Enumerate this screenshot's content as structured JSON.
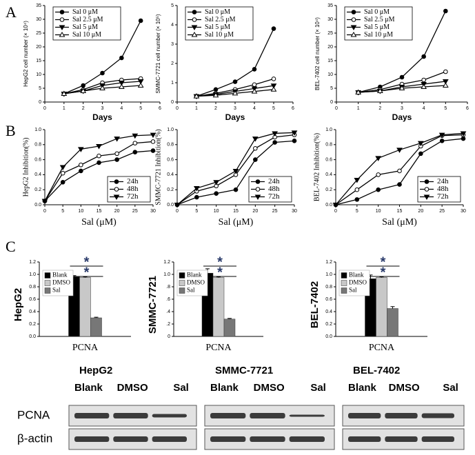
{
  "panel_labels": [
    "A",
    "B",
    "C"
  ],
  "chart_data": [
    {
      "type": "line",
      "x_label": "Days",
      "y_label": "HepG2 cell number (× 10⁴)",
      "x": [
        1,
        2,
        3,
        4,
        5
      ],
      "xlim": [
        0,
        6
      ],
      "xticks": [
        0,
        1,
        2,
        3,
        4,
        5,
        6
      ],
      "ylim": [
        0,
        35
      ],
      "yticks": [
        0,
        5,
        10,
        15,
        20,
        25,
        30,
        35
      ],
      "legend": "upper left",
      "series": [
        {
          "name": "Sal 0 μM",
          "color": "#000000",
          "marker": "circle-filled",
          "values": [
            3,
            6,
            10.5,
            16,
            29.5
          ]
        },
        {
          "name": "Sal 2.5 μM",
          "color": "#000000",
          "marker": "circle-open",
          "values": [
            3,
            4.5,
            7,
            8,
            8.5
          ]
        },
        {
          "name": "Sal 5 μM",
          "color": "#000000",
          "marker": "tri-down",
          "values": [
            3,
            4,
            6,
            7,
            7.5
          ]
        },
        {
          "name": "Sal 10 μM",
          "color": "#000000",
          "marker": "tri-up-open",
          "values": [
            3,
            4,
            5,
            5.5,
            6
          ]
        }
      ]
    },
    {
      "type": "line",
      "x_label": "Days",
      "y_label": "SMMC-7721 cell number (× 10⁵)",
      "x": [
        1,
        2,
        3,
        4,
        5
      ],
      "xlim": [
        0,
        6
      ],
      "xticks": [
        0,
        1,
        2,
        3,
        4,
        5,
        6
      ],
      "ylim": [
        0,
        5
      ],
      "yticks": [
        0,
        1,
        2,
        3,
        4,
        5
      ],
      "legend": "upper left",
      "series": [
        {
          "name": "Sal 0 μM",
          "color": "#000000",
          "marker": "circle-filled",
          "values": [
            0.3,
            0.65,
            1.05,
            1.7,
            3.8
          ]
        },
        {
          "name": "Sal 2.5 μM",
          "color": "#000000",
          "marker": "circle-open",
          "values": [
            0.3,
            0.45,
            0.65,
            0.9,
            1.2
          ]
        },
        {
          "name": "Sal 5 μM",
          "color": "#000000",
          "marker": "tri-down",
          "values": [
            0.3,
            0.4,
            0.55,
            0.7,
            0.85
          ]
        },
        {
          "name": "Sal 10 μM",
          "color": "#000000",
          "marker": "tri-up-open",
          "values": [
            0.3,
            0.35,
            0.45,
            0.55,
            0.65
          ]
        }
      ]
    },
    {
      "type": "line",
      "x_label": "Days",
      "y_label": "BEL-7402 cell number (× 10⁴)",
      "x": [
        1,
        2,
        3,
        4,
        5
      ],
      "xlim": [
        0,
        6
      ],
      "xticks": [
        0,
        1,
        2,
        3,
        4,
        5,
        6
      ],
      "ylim": [
        0,
        35
      ],
      "yticks": [
        0,
        5,
        10,
        15,
        20,
        25,
        30,
        35
      ],
      "legend": "upper left",
      "series": [
        {
          "name": "Sal 0 μM",
          "color": "#000000",
          "marker": "circle-filled",
          "values": [
            3.5,
            5.5,
            9,
            16.5,
            33
          ]
        },
        {
          "name": "Sal 2.5 μM",
          "color": "#000000",
          "marker": "circle-open",
          "values": [
            3.5,
            4.5,
            6.5,
            8,
            11
          ]
        },
        {
          "name": "Sal 5 μM",
          "color": "#000000",
          "marker": "tri-down",
          "values": [
            3.5,
            4,
            5.5,
            6.5,
            7.5
          ]
        },
        {
          "name": "Sal 10 μM",
          "color": "#000000",
          "marker": "tri-up-open",
          "values": [
            3.5,
            4,
            5,
            5.5,
            6
          ]
        }
      ]
    },
    {
      "type": "line",
      "x_label": "Sal (μM)",
      "y_label": "HepG2 Inhibition(%)",
      "x": [
        0,
        5,
        10,
        15,
        20,
        25,
        30
      ],
      "xlim": [
        0,
        30
      ],
      "xticks": [
        0,
        5,
        10,
        15,
        20,
        25,
        30
      ],
      "ylim": [
        0,
        1
      ],
      "yticks": [
        {
          "value": 0,
          "label": "0.0"
        },
        0.2,
        0.4,
        0.6,
        0.8,
        {
          "value": 1,
          "label": "1.0"
        }
      ],
      "legend": "lower right",
      "series": [
        {
          "name": "24h",
          "color": "#000000",
          "marker": "circle-filled",
          "values": [
            0.05,
            0.3,
            0.45,
            0.56,
            0.6,
            0.7,
            0.72
          ]
        },
        {
          "name": "48h",
          "color": "#000000",
          "marker": "circle-open",
          "values": [
            0.05,
            0.42,
            0.53,
            0.65,
            0.68,
            0.82,
            0.84
          ]
        },
        {
          "name": "72h",
          "color": "#000000",
          "marker": "tri-down",
          "values": [
            0.05,
            0.5,
            0.74,
            0.78,
            0.88,
            0.92,
            0.93
          ]
        }
      ]
    },
    {
      "type": "line",
      "x_label": "Sal (μM)",
      "y_label": "SMMC-7721 Inhibition(%)",
      "x": [
        0,
        5,
        10,
        15,
        20,
        25,
        30
      ],
      "xlim": [
        0,
        30
      ],
      "xticks": [
        0,
        5,
        10,
        15,
        20,
        25,
        30
      ],
      "ylim": [
        0,
        1
      ],
      "yticks": [
        {
          "value": 0,
          "label": "0.0"
        },
        0.2,
        0.4,
        0.6,
        0.8,
        {
          "value": 1,
          "label": "1.0"
        }
      ],
      "legend": "lower right",
      "series": [
        {
          "name": "24h",
          "color": "#000000",
          "marker": "circle-filled",
          "values": [
            0,
            0.1,
            0.15,
            0.2,
            0.6,
            0.83,
            0.85
          ]
        },
        {
          "name": "48h",
          "color": "#000000",
          "marker": "circle-open",
          "values": [
            0,
            0.18,
            0.25,
            0.4,
            0.75,
            0.9,
            0.93
          ]
        },
        {
          "name": "72h",
          "color": "#000000",
          "marker": "tri-down",
          "values": [
            0,
            0.22,
            0.3,
            0.45,
            0.88,
            0.95,
            0.96
          ]
        }
      ]
    },
    {
      "type": "line",
      "x_label": "Sal (μM)",
      "y_label": "BEL-7402 Inhibition(%)",
      "x": [
        0,
        5,
        10,
        15,
        20,
        25,
        30
      ],
      "xlim": [
        0,
        30
      ],
      "xticks": [
        0,
        5,
        10,
        15,
        20,
        25,
        30
      ],
      "ylim": [
        0,
        1
      ],
      "yticks": [
        {
          "value": 0,
          "label": "0.0"
        },
        0.2,
        0.4,
        0.6,
        0.8,
        {
          "value": 1,
          "label": "1.0"
        }
      ],
      "legend": "lower right",
      "series": [
        {
          "name": "24h",
          "color": "#000000",
          "marker": "circle-filled",
          "values": [
            0,
            0.07,
            0.2,
            0.27,
            0.68,
            0.85,
            0.88
          ]
        },
        {
          "name": "48h",
          "color": "#000000",
          "marker": "circle-open",
          "values": [
            0,
            0.2,
            0.4,
            0.45,
            0.78,
            0.92,
            0.93
          ]
        },
        {
          "name": "72h",
          "color": "#000000",
          "marker": "tri-down",
          "values": [
            0,
            0.33,
            0.62,
            0.73,
            0.82,
            0.93,
            0.95
          ]
        }
      ]
    },
    {
      "type": "bar",
      "y_label": "HepG2",
      "categories": [
        "PCNA"
      ],
      "ylim": [
        0,
        1.2
      ],
      "yticks": [
        {
          "value": 0,
          "label": "0.0"
        },
        0.2,
        0.4,
        0.6,
        0.8,
        {
          "value": 1,
          "label": "1.0"
        },
        1.2
      ],
      "legend": "upper left",
      "annotations": [
        "*",
        "*"
      ],
      "series": [
        {
          "name": "Blank",
          "color": "#000000",
          "values": [
            0.96
          ],
          "errors": [
            0.02
          ]
        },
        {
          "name": "DMSO",
          "color": "#c8c8c8",
          "values": [
            0.95
          ],
          "errors": [
            0.01
          ]
        },
        {
          "name": "Sal",
          "color": "#777777",
          "values": [
            0.3
          ],
          "errors": [
            0.01
          ]
        }
      ]
    },
    {
      "type": "bar",
      "y_label": "SMMC-7721",
      "categories": [
        "PCNA"
      ],
      "ylim": [
        0,
        1.2
      ],
      "yticks": [
        0,
        {
          "value": 0.2,
          "label": ".2"
        },
        {
          "value": 0.4,
          "label": ".4"
        },
        {
          "value": 0.6,
          "label": ".6"
        },
        {
          "value": 0.8,
          "label": ".8"
        },
        {
          "value": 1,
          "label": "1.0"
        },
        1.2
      ],
      "legend": "upper left",
      "annotations": [
        "*",
        "*"
      ],
      "series": [
        {
          "name": "Blank",
          "color": "#000000",
          "values": [
            1.02
          ],
          "errors": [
            0.07
          ]
        },
        {
          "name": "DMSO",
          "color": "#c8c8c8",
          "values": [
            0.95
          ],
          "errors": [
            0.01
          ]
        },
        {
          "name": "Sal",
          "color": "#777777",
          "values": [
            0.28
          ],
          "errors": [
            0.01
          ]
        }
      ]
    },
    {
      "type": "bar",
      "y_label": "BEL-7402",
      "categories": [
        "PCNA"
      ],
      "ylim": [
        0,
        1.2
      ],
      "yticks": [
        {
          "value": 0,
          "label": "0.0"
        },
        0.2,
        0.4,
        0.6,
        0.8,
        {
          "value": 1,
          "label": "1.0"
        },
        1.2
      ],
      "legend": "upper left",
      "annotations": [
        "*",
        "*"
      ],
      "series": [
        {
          "name": "Blank",
          "color": "#000000",
          "values": [
            0.93
          ],
          "errors": [
            0.06
          ]
        },
        {
          "name": "DMSO",
          "color": "#c8c8c8",
          "values": [
            0.95
          ],
          "errors": [
            0.01
          ]
        },
        {
          "name": "Sal",
          "color": "#777777",
          "values": [
            0.45
          ],
          "errors": [
            0.03
          ]
        }
      ]
    }
  ],
  "blots": {
    "rows": [
      "PCNA",
      "β-actin"
    ],
    "panels": [
      {
        "title": "HepG2",
        "lanes": [
          "Blank",
          "DMSO",
          "Sal"
        ]
      },
      {
        "title": "SMMC-7721",
        "lanes": [
          "Blank",
          "DMSO",
          "Sal"
        ]
      },
      {
        "title": "BEL-7402",
        "lanes": [
          "Blank",
          "DMSO",
          "Sal"
        ]
      }
    ]
  }
}
